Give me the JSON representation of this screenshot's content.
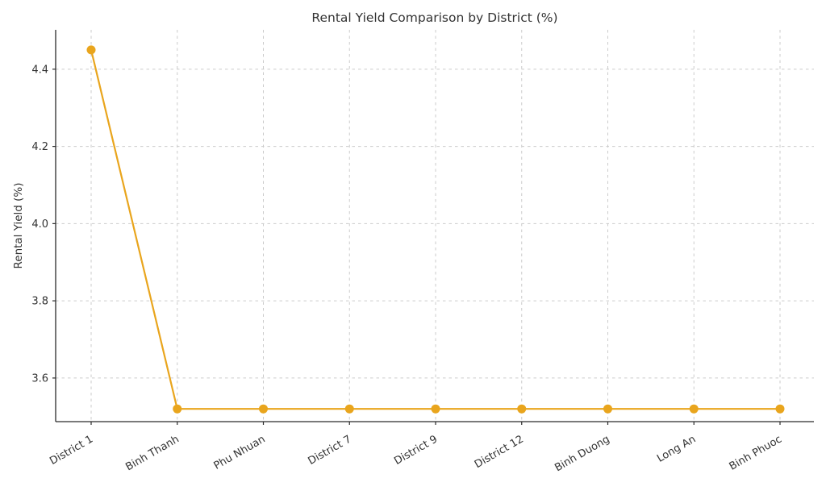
{
  "page": {
    "background": "#FFFFFF"
  },
  "chart_data": {
    "type": "line",
    "title": "Rental Yield Comparison by District (%)",
    "xlabel": "",
    "ylabel": "Rental Yield (%)",
    "categories": [
      "District 1",
      "Binh Thanh",
      "Phu Nhuan",
      "District 7",
      "District 9",
      "District 12",
      "Binh Duong",
      "Long An",
      "Binh Phuoc"
    ],
    "values": [
      4.45,
      3.52,
      3.52,
      3.52,
      3.52,
      3.52,
      3.52,
      3.52,
      3.52
    ],
    "yticks": {
      "values": [
        3.6,
        3.8,
        4.0,
        4.2,
        4.4
      ],
      "labels": [
        "3.6",
        "3.8",
        "4.0",
        "4.2",
        "4.4"
      ]
    },
    "ylim": [
      3.487,
      4.502
    ],
    "grid": true,
    "grid_style": "dashed",
    "legend": "none",
    "x_tick_rotation": 30,
    "marker": "circle",
    "colors": {
      "line": "#E9A51D",
      "marker": "#E9A51D",
      "grid": "#CBCBCB",
      "text": "#333333",
      "spine": "#2B2B2B",
      "background": "#FFFFFF"
    }
  }
}
